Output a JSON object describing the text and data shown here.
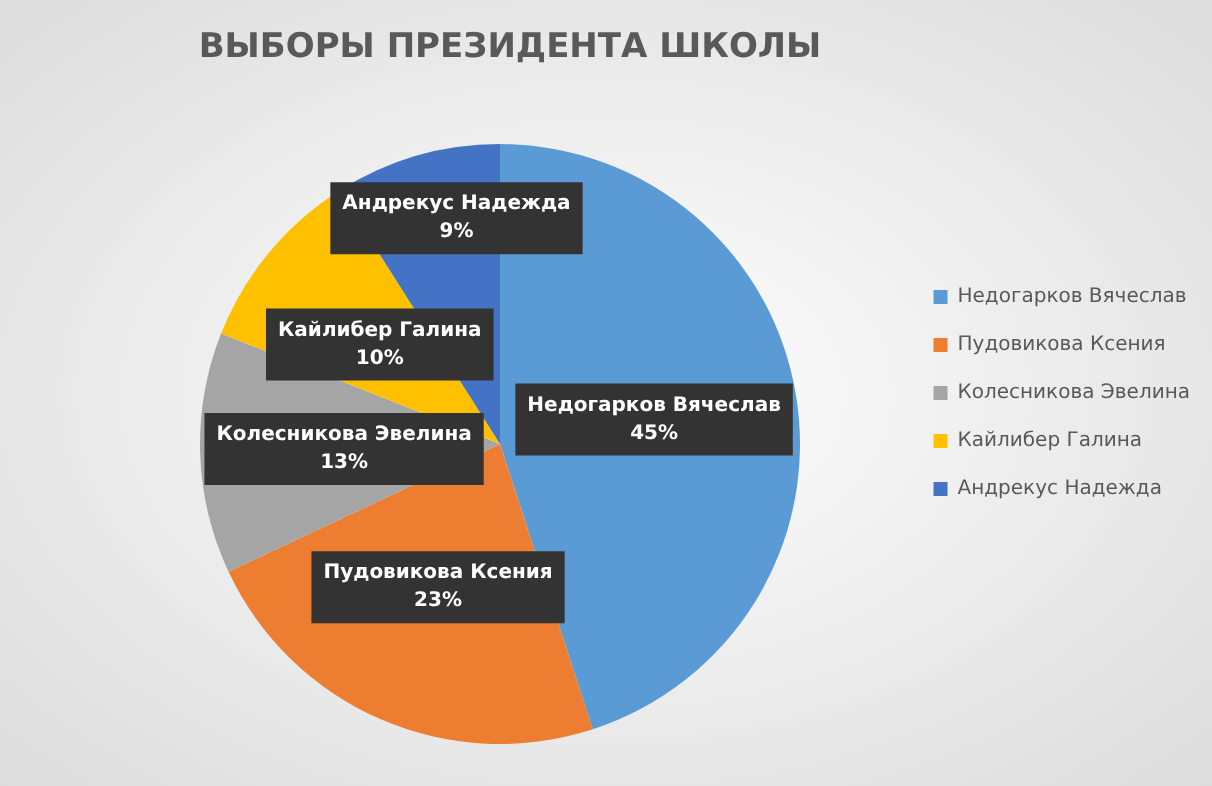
{
  "chart_data": {
    "type": "pie",
    "title": "ВЫБОРЫ ПРЕЗИДЕНТА ШКОЛЫ",
    "categories": [
      "Недогарков Вячеслав",
      "Пудовикова Ксения",
      "Колесникова Эвелина",
      "Кайлибер Галина",
      "Андрекус Надежда"
    ],
    "values": [
      45,
      23,
      13,
      10,
      9
    ],
    "value_labels": [
      "45%",
      "23%",
      "13%",
      "10%",
      "9%"
    ],
    "colors": [
      "#5b9bd5",
      "#ed7d31",
      "#a5a5a5",
      "#ffc000",
      "#4472c4"
    ],
    "legend": "right"
  }
}
